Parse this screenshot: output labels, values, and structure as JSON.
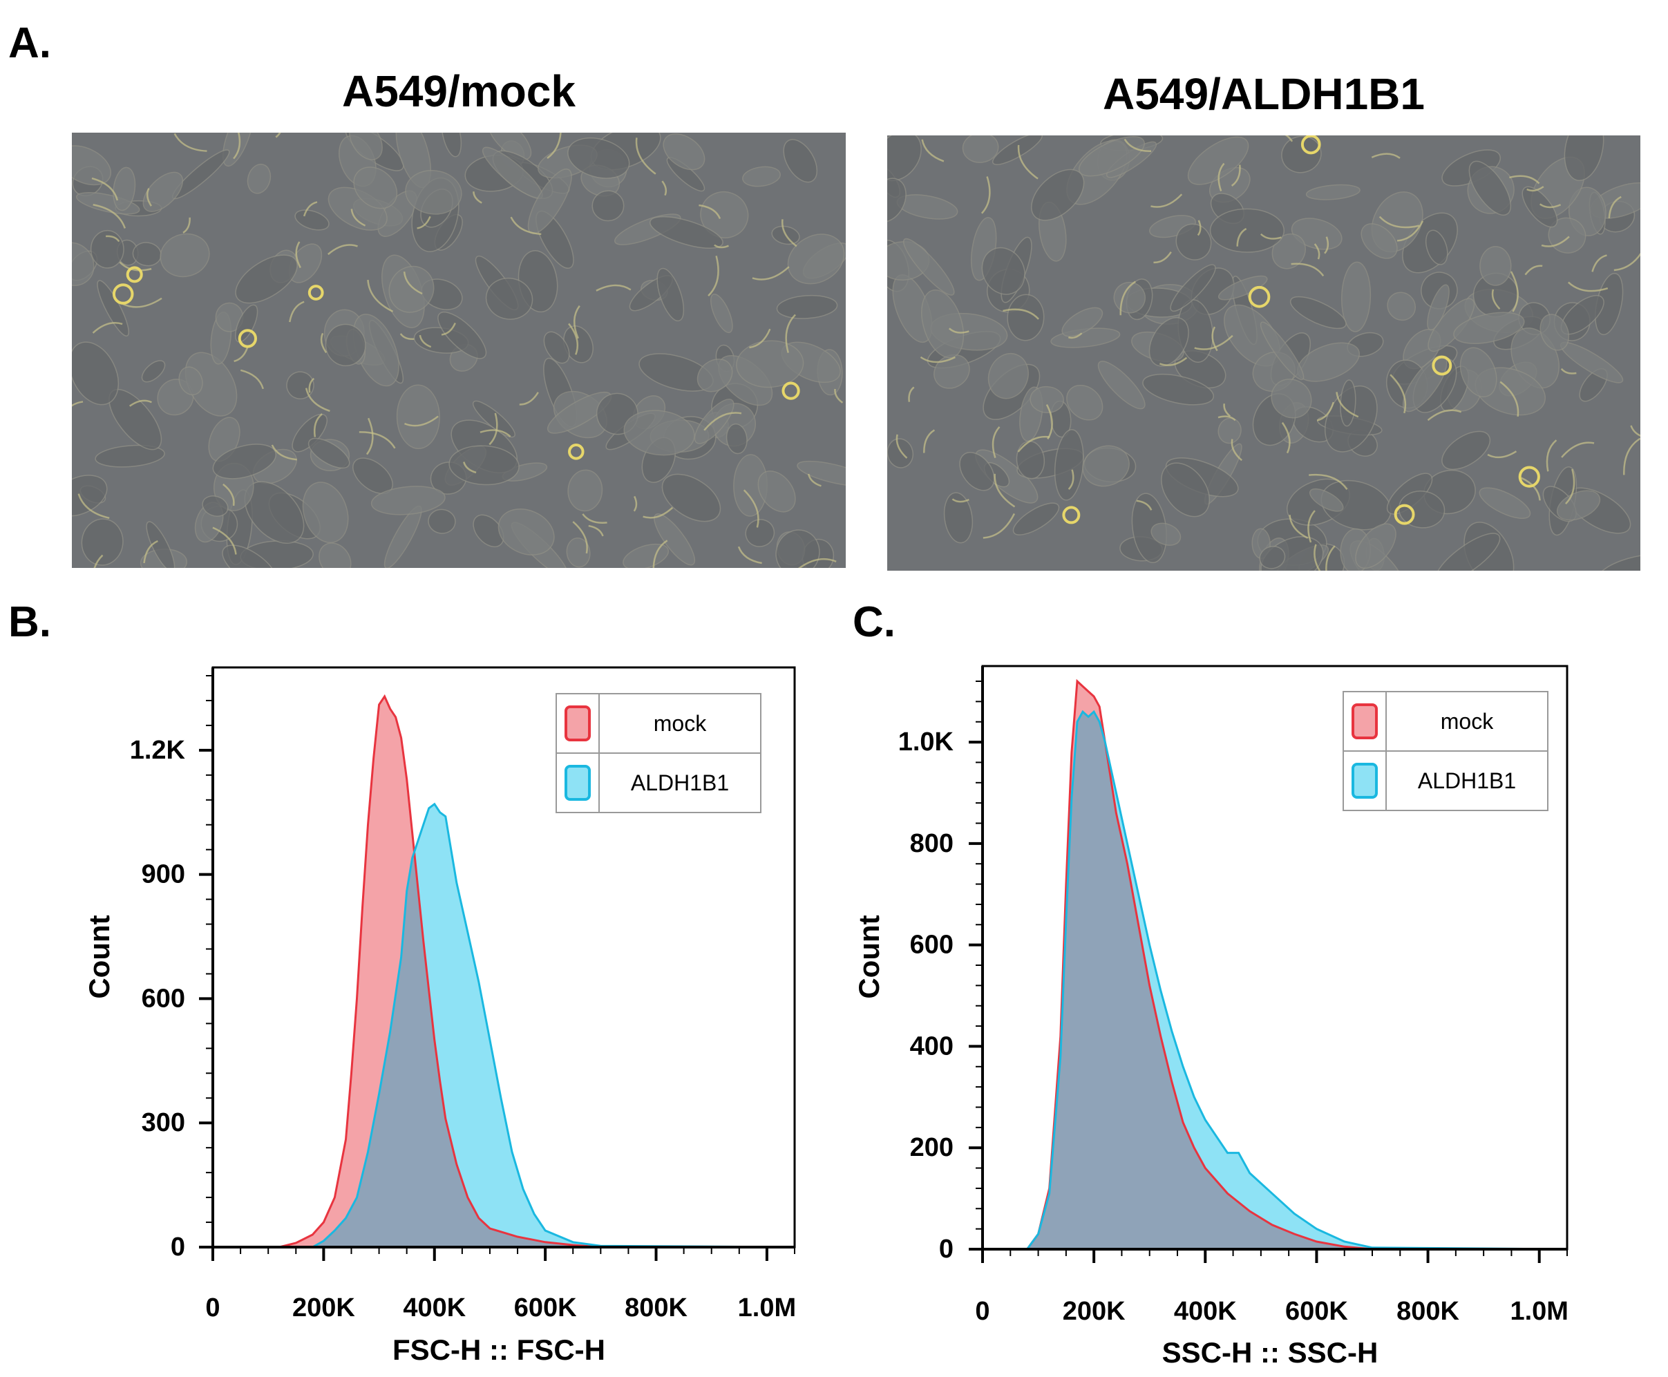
{
  "panels": {
    "a": {
      "letter": "A.",
      "left_title": "A549/mock",
      "right_title": "A549/ALDH1B1"
    },
    "b": {
      "letter": "B."
    },
    "c": {
      "letter": "C."
    }
  },
  "colors": {
    "mock_fill": "#f4a3a8",
    "mock_line": "#e8343f",
    "aldh_fill": "#8ee2f5",
    "aldh_line": "#1ab8e0",
    "overlap_fill": "#8fa3b8"
  },
  "chart_data": [
    {
      "type": "area",
      "panel": "B",
      "xlabel": "FSC-H :: FSC-H",
      "ylabel": "Count",
      "xlim": [
        0,
        1050000
      ],
      "ylim": [
        0,
        1400
      ],
      "x_ticks": [
        0,
        200000,
        400000,
        600000,
        800000,
        1000000
      ],
      "x_tick_labels": [
        "0",
        "200K",
        "400K",
        "600K",
        "800K",
        "1.0M"
      ],
      "y_ticks": [
        0,
        300,
        600,
        900,
        1200
      ],
      "y_tick_labels": [
        "0",
        "300",
        "600",
        "900",
        "1.2K"
      ],
      "legend": "top-right",
      "series": [
        {
          "name": "mock",
          "x": [
            0,
            120000,
            150000,
            180000,
            200000,
            220000,
            240000,
            250000,
            260000,
            270000,
            280000,
            290000,
            300000,
            310000,
            320000,
            330000,
            340000,
            350000,
            360000,
            370000,
            380000,
            390000,
            400000,
            410000,
            420000,
            440000,
            460000,
            480000,
            500000,
            550000,
            600000,
            650000,
            700000,
            1050000
          ],
          "y": [
            0,
            0,
            10,
            30,
            60,
            120,
            260,
            420,
            600,
            820,
            1020,
            1180,
            1310,
            1330,
            1300,
            1280,
            1230,
            1130,
            1000,
            870,
            740,
            620,
            500,
            400,
            310,
            200,
            120,
            70,
            45,
            25,
            12,
            5,
            0,
            0
          ]
        },
        {
          "name": "ALDH1B1",
          "x": [
            0,
            180000,
            200000,
            220000,
            240000,
            260000,
            280000,
            300000,
            320000,
            340000,
            350000,
            360000,
            370000,
            380000,
            390000,
            400000,
            410000,
            420000,
            430000,
            440000,
            460000,
            480000,
            500000,
            520000,
            540000,
            560000,
            580000,
            600000,
            650000,
            700000,
            1050000
          ],
          "y": [
            0,
            0,
            15,
            40,
            70,
            120,
            230,
            370,
            520,
            700,
            860,
            940,
            980,
            1020,
            1060,
            1070,
            1050,
            1040,
            960,
            880,
            760,
            640,
            500,
            360,
            230,
            140,
            80,
            40,
            12,
            3,
            0
          ]
        }
      ]
    },
    {
      "type": "area",
      "panel": "C",
      "xlabel": "SSC-H :: SSC-H",
      "ylabel": "Count",
      "xlim": [
        0,
        1050000
      ],
      "ylim": [
        0,
        1150
      ],
      "x_ticks": [
        0,
        200000,
        400000,
        600000,
        800000,
        1000000
      ],
      "x_tick_labels": [
        "0",
        "200K",
        "400K",
        "600K",
        "800K",
        "1.0M"
      ],
      "y_ticks": [
        0,
        200,
        400,
        600,
        800,
        1000
      ],
      "y_tick_labels": [
        "0",
        "200",
        "400",
        "600",
        "800",
        "1.0K"
      ],
      "legend": "top-right",
      "series": [
        {
          "name": "mock",
          "x": [
            0,
            80000,
            100000,
            120000,
            140000,
            150000,
            160000,
            170000,
            180000,
            190000,
            200000,
            210000,
            220000,
            240000,
            260000,
            280000,
            300000,
            320000,
            340000,
            360000,
            380000,
            400000,
            440000,
            480000,
            520000,
            560000,
            600000,
            650000,
            700000,
            1050000
          ],
          "y": [
            0,
            0,
            30,
            120,
            420,
            720,
            980,
            1120,
            1110,
            1100,
            1090,
            1070,
            1000,
            860,
            760,
            640,
            520,
            420,
            330,
            250,
            200,
            160,
            110,
            75,
            48,
            30,
            15,
            5,
            0,
            0
          ]
        },
        {
          "name": "ALDH1B1",
          "x": [
            0,
            80000,
            100000,
            120000,
            140000,
            150000,
            160000,
            170000,
            180000,
            190000,
            200000,
            210000,
            220000,
            240000,
            260000,
            280000,
            300000,
            320000,
            340000,
            360000,
            380000,
            400000,
            440000,
            460000,
            480000,
            520000,
            560000,
            600000,
            650000,
            700000,
            1050000
          ],
          "y": [
            0,
            0,
            30,
            110,
            380,
            650,
            890,
            1040,
            1060,
            1050,
            1060,
            1040,
            1000,
            900,
            800,
            700,
            600,
            510,
            430,
            360,
            300,
            255,
            190,
            190,
            150,
            110,
            70,
            40,
            15,
            3,
            0
          ]
        }
      ]
    }
  ]
}
